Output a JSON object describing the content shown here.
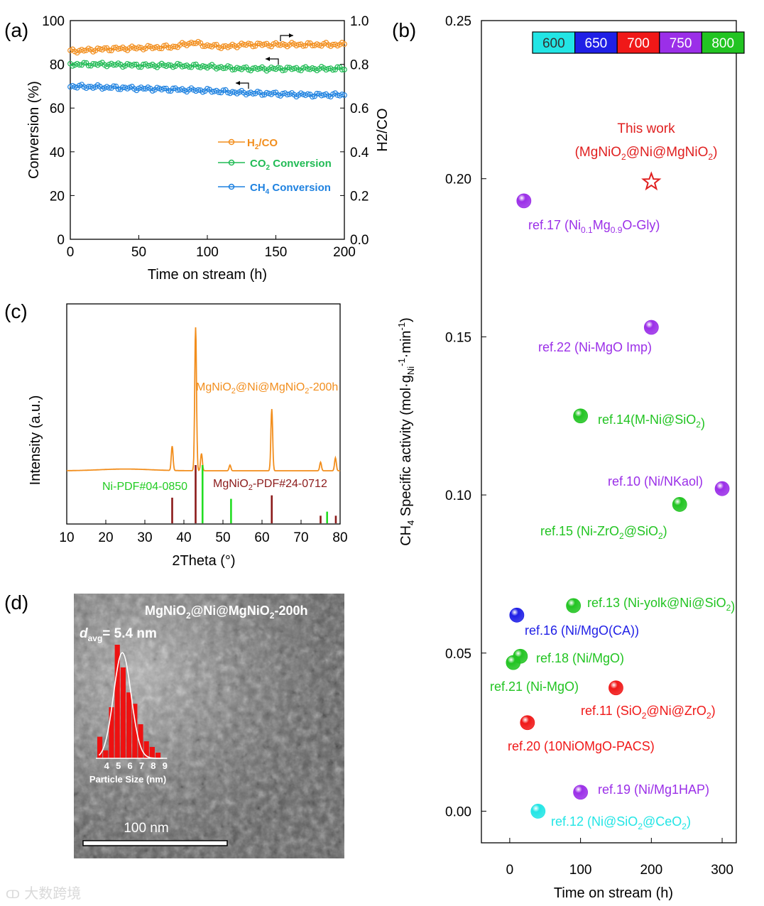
{
  "watermark": "大数跨境",
  "chart_data": [
    {
      "panel": "(a)",
      "type": "line",
      "xlabel": "Time on stream (h)",
      "ylabel": "Conversion (%)",
      "y2label": "H2/CO",
      "xlim": [
        0,
        200
      ],
      "ylim": [
        0,
        100
      ],
      "y2lim": [
        0,
        1.0
      ],
      "xticks": [
        "0",
        "50",
        "100",
        "150",
        "200"
      ],
      "yticks": [
        "0",
        "20",
        "40",
        "60",
        "80",
        "100"
      ],
      "y2ticks": [
        "0.0",
        "0.2",
        "0.4",
        "0.6",
        "0.8",
        "1.0"
      ],
      "series": [
        {
          "name": "H2/CO",
          "color": "#f28e1d",
          "axis": "right",
          "x": [
            0,
            25,
            50,
            75,
            90,
            100,
            115,
            125,
            150,
            175,
            200
          ],
          "values": [
            0.86,
            0.87,
            0.875,
            0.88,
            0.9,
            0.885,
            0.88,
            0.89,
            0.89,
            0.89,
            0.89
          ]
        },
        {
          "name": "CO2 Conversion",
          "color": "#21bb55",
          "axis": "left",
          "x": [
            0,
            25,
            50,
            75,
            100,
            125,
            150,
            175,
            200
          ],
          "values": [
            80,
            80,
            79.5,
            79.5,
            79,
            78,
            78,
            78,
            78
          ]
        },
        {
          "name": "CH4 Conversion",
          "color": "#1f82e0",
          "axis": "left",
          "x": [
            0,
            25,
            50,
            75,
            100,
            125,
            150,
            175,
            200
          ],
          "values": [
            70,
            69.5,
            69,
            68.5,
            68,
            67,
            66.5,
            66,
            66
          ]
        }
      ],
      "legend": [
        {
          "pre": "H",
          "sub": "2",
          "post": "/CO",
          "color": "#f28e1d"
        },
        {
          "pre": "CO",
          "sub": "2",
          "post": " Conversion",
          "color": "#21bb55"
        },
        {
          "pre": "CH",
          "sub": "4",
          "post": " Conversion",
          "color": "#1f82e0"
        }
      ]
    },
    {
      "panel": "(b)",
      "type": "scatter",
      "xlabel": "Time on stream (h)",
      "ylabel_parts": {
        "a": "CH",
        "a_sub": "4",
        "b": " Specific activity (mol·g",
        "b_sub": "Ni",
        "b_sup": "-1",
        "c": "·min",
        "c_sup": "-1",
        "d": ")"
      },
      "xlim": [
        -40,
        320
      ],
      "ylim": [
        -0.01,
        0.25
      ],
      "xticks": [
        0,
        100,
        200,
        300
      ],
      "yticks": [
        "0.00",
        "0.05",
        "0.10",
        "0.15",
        "0.20",
        "0.25"
      ],
      "temperature_legend": [
        {
          "label": "600",
          "color": "#22e5e5"
        },
        {
          "label": "650",
          "color": "#1f1fe6"
        },
        {
          "label": "700",
          "color": "#f01818"
        },
        {
          "label": "750",
          "color": "#9b2fe8"
        },
        {
          "label": "800",
          "color": "#22c422"
        }
      ],
      "this_work": {
        "x": 200,
        "y": 0.199,
        "color": "#e02020",
        "title": "This work",
        "label_pre": "(MgNiO",
        "s1": "2",
        "label_mid": "@Ni@MgNiO",
        "s2": "2",
        "label_post": ")"
      },
      "points": [
        {
          "x": 20,
          "y": 0.193,
          "temp": "750",
          "label": "ref.17 (Ni",
          "sub1": "0.1",
          "mid": "Mg",
          "sub2": "0.9",
          "post": "O-Gly)"
        },
        {
          "x": 200,
          "y": 0.153,
          "temp": "750",
          "label": "ref.22 (Ni-MgO Imp)"
        },
        {
          "x": 100,
          "y": 0.125,
          "temp": "800",
          "label": "ref.14(M-Ni@SiO",
          "sub1": "2",
          "post": ")"
        },
        {
          "x": 300,
          "y": 0.102,
          "temp": "750",
          "label": "ref.10 (Ni/NKaol)"
        },
        {
          "x": 240,
          "y": 0.097,
          "temp": "800",
          "label": "ref.15 (Ni-ZrO",
          "sub1": "2",
          "mid": "@SiO",
          "sub2": "2",
          "post": ")"
        },
        {
          "x": 90,
          "y": 0.065,
          "temp": "800",
          "label": "ref.13 (Ni-yolk@Ni@SiO",
          "sub1": "2",
          "post": ")"
        },
        {
          "x": 10,
          "y": 0.062,
          "temp": "650",
          "label": "ref.16 (Ni/MgO(CA))"
        },
        {
          "x": 15,
          "y": 0.049,
          "temp": "800",
          "label": "ref.18 (Ni/MgO)"
        },
        {
          "x": 5,
          "y": 0.047,
          "temp": "800",
          "label": "ref.21 (Ni-MgO)"
        },
        {
          "x": 150,
          "y": 0.039,
          "temp": "700",
          "label": "ref.11 (SiO",
          "sub1": "2",
          "mid": "@Ni@ZrO",
          "sub2": "2",
          "post": ")"
        },
        {
          "x": 25,
          "y": 0.028,
          "temp": "700",
          "label": "ref.20 (10NiOMgO-PACS)"
        },
        {
          "x": 100,
          "y": 0.006,
          "temp": "750",
          "label": "ref.19 (Ni/Mg1HAP)"
        },
        {
          "x": 40,
          "y": 0.0,
          "temp": "600",
          "label": "ref.12 (Ni@SiO",
          "sub1": "2",
          "mid": "@CeO",
          "sub2": "2",
          "post": ")"
        }
      ]
    },
    {
      "panel": "(c)",
      "type": "line",
      "xlabel": "2Theta (°)",
      "ylabel": "Intensity (a.u.)",
      "xlim": [
        10,
        80
      ],
      "xticks": [
        "10",
        "20",
        "30",
        "40",
        "50",
        "60",
        "70",
        "80"
      ],
      "sample_label": {
        "pre": "MgNiO",
        "s1": "2",
        "mid": "@Ni@MgNiO",
        "s2": "2",
        "post": "-200h",
        "color": "#f28e1d"
      },
      "pattern_peaks": [
        {
          "two_theta": 37.0,
          "height": 0.17
        },
        {
          "two_theta": 43.0,
          "height": 1.0
        },
        {
          "two_theta": 44.5,
          "height": 0.12
        },
        {
          "two_theta": 51.8,
          "height": 0.04
        },
        {
          "two_theta": 62.5,
          "height": 0.43
        },
        {
          "two_theta": 75.0,
          "height": 0.06
        },
        {
          "two_theta": 78.8,
          "height": 0.09
        }
      ],
      "references": [
        {
          "name": "Ni-PDF#04-0850",
          "color": "#22dd22",
          "peaks": [
            {
              "two_theta": 44.5,
              "height": 1.0
            },
            {
              "two_theta": 51.8,
              "height": 0.42
            },
            {
              "two_theta": 76.4,
              "height": 0.2
            }
          ]
        },
        {
          "name": "MgNiO",
          "name_sub": "2",
          "name_post": "-PDF#24-0712",
          "color": "#8b1a1a",
          "peaks": [
            {
              "two_theta": 37.0,
              "height": 0.44
            },
            {
              "two_theta": 43.0,
              "height": 1.0
            },
            {
              "two_theta": 62.5,
              "height": 0.48
            },
            {
              "two_theta": 75.0,
              "height": 0.13
            },
            {
              "two_theta": 78.9,
              "height": 0.13
            }
          ]
        }
      ]
    },
    {
      "panel": "(d)",
      "type": "bar",
      "title": {
        "pre": "MgNiO",
        "s1": "2",
        "mid": "@Ni@MgNiO",
        "s2": "2",
        "post": "-200h"
      },
      "davg": {
        "d": "d",
        "sub": "avg",
        "post": "= 5.4 nm"
      },
      "xlabel": "Particle Size (nm)",
      "xticks": [
        "4",
        "5",
        "6",
        "7",
        "8",
        "9"
      ],
      "categories": [
        3.5,
        4.0,
        4.5,
        5.0,
        5.5,
        6.0,
        6.5,
        7.0,
        7.5,
        8.0,
        8.5
      ],
      "values": [
        0.19,
        0.07,
        0.45,
        1.0,
        0.8,
        0.58,
        0.48,
        0.3,
        0.15,
        0.1,
        0.05
      ],
      "fit_mean": 5.4,
      "fit_sigma": 0.75,
      "scale_bar": "100 nm"
    }
  ]
}
